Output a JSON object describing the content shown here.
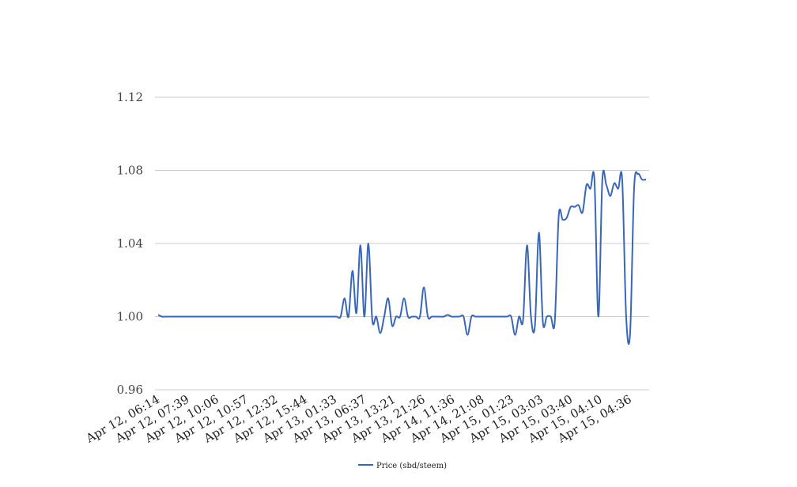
{
  "chart_data": {
    "type": "line",
    "title": "",
    "xlabel": "",
    "ylabel": "",
    "ylim": [
      0.96,
      1.12
    ],
    "yticks": [
      "0.96",
      "1.00",
      "1.04",
      "1.08",
      "1.12"
    ],
    "grid": true,
    "legend_position": "bottom-center",
    "x_tick_labels": [
      "Apr 12, 06:14",
      "Apr 12, 07:39",
      "Apr 12, 10:06",
      "Apr 12, 10:57",
      "Apr 12, 12:32",
      "Apr 12, 15:44",
      "Apr 13, 01:33",
      "Apr 13, 06:37",
      "Apr 13, 13:21",
      "Apr 13, 21:26",
      "Apr 14, 11:36",
      "Apr 14, 21:08",
      "Apr 15, 01:23",
      "Apr 15, 03:03",
      "Apr 15, 03:40",
      "Apr 15, 04:10",
      "Apr 15, 04:36"
    ],
    "series": [
      {
        "name": "Price (sbd/steem)",
        "color": "#3a66b8",
        "values": [
          1.001,
          1.0,
          1.0,
          1.0,
          1.0,
          1.0,
          1.0,
          1.0,
          1.0,
          1.0,
          1.0,
          1.0,
          1.0,
          1.0,
          1.0,
          1.0,
          1.0,
          1.0,
          1.0,
          1.0,
          1.0,
          1.0,
          1.0,
          1.0,
          1.0,
          1.0,
          1.0,
          1.0,
          1.0,
          1.0,
          1.0,
          1.0,
          1.0,
          1.0,
          1.0,
          1.0,
          1.0,
          1.0,
          1.0,
          1.0,
          1.0,
          1.0,
          1.0,
          1.0,
          1.0,
          1.0,
          1.0,
          1.01,
          1.0,
          1.025,
          1.002,
          1.039,
          1.0,
          1.04,
          0.998,
          1.0,
          0.991,
          1.0,
          1.01,
          0.995,
          1.0,
          1.0,
          1.01,
          1.0,
          1.0,
          1.0,
          1.0,
          1.016,
          1.0,
          1.0,
          1.0,
          1.0,
          1.0,
          1.001,
          1.0,
          1.0,
          1.0,
          1.0,
          0.99,
          1.0,
          1.0,
          1.0,
          1.0,
          1.0,
          1.0,
          1.0,
          1.0,
          1.0,
          1.0,
          1.0,
          0.99,
          1.0,
          0.998,
          1.039,
          1.0,
          0.995,
          1.046,
          0.997,
          1.0,
          1.0,
          0.997,
          1.055,
          1.053,
          1.054,
          1.06,
          1.06,
          1.061,
          1.057,
          1.072,
          1.07,
          1.075,
          1.0,
          1.075,
          1.072,
          1.066,
          1.073,
          1.07,
          1.075,
          1.0,
          0.991,
          1.07,
          1.078,
          1.075,
          1.075
        ]
      }
    ]
  }
}
